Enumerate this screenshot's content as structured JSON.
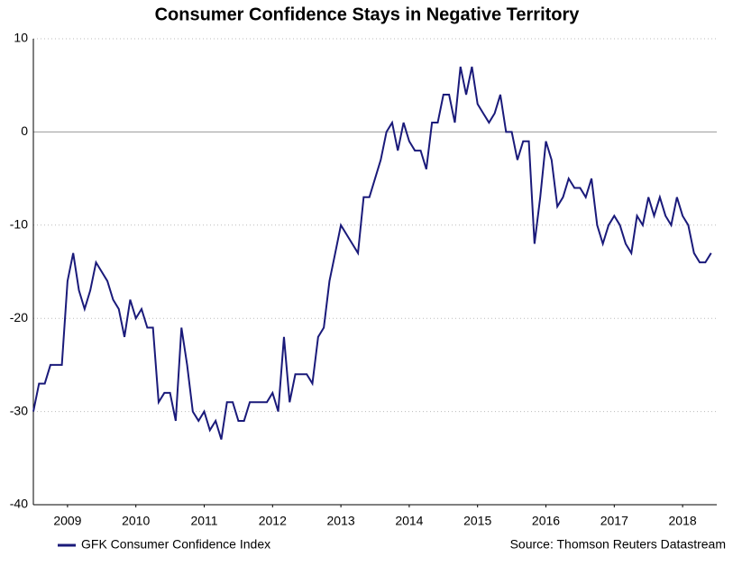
{
  "chart_data": {
    "type": "line",
    "title": "Consumer Confidence Stays in Negative Territory",
    "source": "Source: Thomson Reuters Datastream",
    "x": [
      2009,
      2009.083,
      2009.167,
      2009.25,
      2009.333,
      2009.417,
      2009.5,
      2009.583,
      2009.667,
      2009.75,
      2009.833,
      2009.917,
      2010,
      2010.083,
      2010.167,
      2010.25,
      2010.333,
      2010.417,
      2010.5,
      2010.583,
      2010.667,
      2010.75,
      2010.833,
      2010.917,
      2011,
      2011.083,
      2011.167,
      2011.25,
      2011.333,
      2011.417,
      2011.5,
      2011.583,
      2011.667,
      2011.75,
      2011.833,
      2011.917,
      2012,
      2012.083,
      2012.167,
      2012.25,
      2012.333,
      2012.417,
      2012.5,
      2012.583,
      2012.667,
      2012.75,
      2012.833,
      2012.917,
      2013,
      2013.083,
      2013.167,
      2013.25,
      2013.333,
      2013.417,
      2013.5,
      2013.583,
      2013.667,
      2013.75,
      2013.833,
      2013.917,
      2014,
      2014.083,
      2014.167,
      2014.25,
      2014.333,
      2014.417,
      2014.5,
      2014.583,
      2014.667,
      2014.75,
      2014.833,
      2014.917,
      2015,
      2015.083,
      2015.167,
      2015.25,
      2015.333,
      2015.417,
      2015.5,
      2015.583,
      2015.667,
      2015.75,
      2015.833,
      2015.917,
      2016,
      2016.083,
      2016.167,
      2016.25,
      2016.333,
      2016.417,
      2016.5,
      2016.583,
      2016.667,
      2016.75,
      2016.833,
      2016.917,
      2017,
      2017.083,
      2017.167,
      2017.25,
      2017.333,
      2017.417,
      2017.5,
      2017.583,
      2017.667,
      2017.75,
      2017.833,
      2017.917,
      2018,
      2018.083,
      2018.167,
      2018.25,
      2018.333,
      2018.417,
      2018.5,
      2018.583,
      2018.667,
      2018.75,
      2018.833,
      2018.917
    ],
    "series": [
      {
        "name": "GFK Consumer Confidence Index",
        "color": "#1a1a7a",
        "values": [
          -30,
          -27,
          -27,
          -25,
          -25,
          -25,
          -16,
          -13,
          -17,
          -19,
          -17,
          -14,
          -15,
          -16,
          -18,
          -19,
          -22,
          -18,
          -20,
          -19,
          -21,
          -21,
          -29,
          -28,
          -28,
          -31,
          -21,
          -25,
          -30,
          -31,
          -30,
          -32,
          -31,
          -33,
          -29,
          -29,
          -31,
          -31,
          -29,
          -29,
          -29,
          -29,
          -28,
          -30,
          -22,
          -29,
          -26,
          -26,
          -26,
          -27,
          -22,
          -21,
          -16,
          -13,
          -10,
          -11,
          -12,
          -13,
          -7,
          -7,
          -5,
          -3,
          0,
          1,
          -2,
          1,
          -1,
          -2,
          -2,
          -4,
          1,
          1,
          4,
          4,
          1,
          7,
          4,
          7,
          3,
          2,
          1,
          2,
          4,
          0,
          0,
          -3,
          -1,
          -1,
          -12,
          -7,
          -1,
          -3,
          -8,
          -7,
          -5,
          -6,
          -6,
          -7,
          -5,
          -10,
          -12,
          -10,
          -9,
          -10,
          -12,
          -13,
          -9,
          -10,
          -7,
          -9,
          -7,
          -9,
          -10,
          -7,
          -9,
          -10,
          -13,
          -14,
          -14,
          -13
        ]
      }
    ],
    "xlim": [
      2009,
      2019
    ],
    "xticks": [
      {
        "value": 2009.5,
        "label": "2009"
      },
      {
        "value": 2010.5,
        "label": "2010"
      },
      {
        "value": 2011.5,
        "label": "2011"
      },
      {
        "value": 2012.5,
        "label": "2012"
      },
      {
        "value": 2013.5,
        "label": "2013"
      },
      {
        "value": 2014.5,
        "label": "2014"
      },
      {
        "value": 2015.5,
        "label": "2015"
      },
      {
        "value": 2016.5,
        "label": "2016"
      },
      {
        "value": 2017.5,
        "label": "2017"
      },
      {
        "value": 2018.5,
        "label": "2018"
      }
    ],
    "ylim": [
      -40,
      10
    ],
    "yticks": [
      -40,
      -30,
      -20,
      -10,
      0,
      10
    ],
    "grid": true,
    "legend": "bottom-left"
  }
}
